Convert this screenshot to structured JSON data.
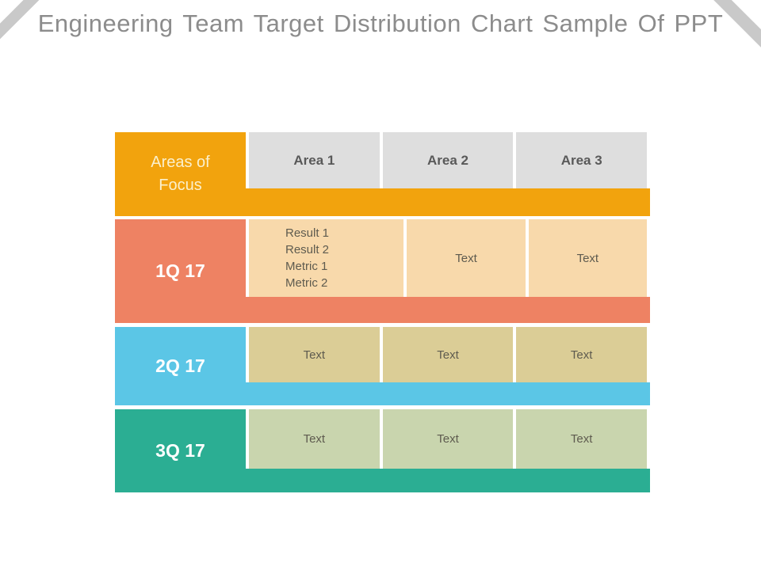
{
  "slide": {
    "title": "Engineering Team Target Distribution Chart Sample Of PPT"
  },
  "table": {
    "corner_header_lines": [
      "Areas of",
      "Focus"
    ],
    "column_headers": [
      "Area 1",
      "Area 2",
      "Area 3"
    ],
    "rows": [
      {
        "label": "1Q 17",
        "cells": [
          {
            "lines": [
              "Result 1",
              "Result 2",
              "Metric 1",
              "Metric 2"
            ]
          },
          {
            "lines": [
              "Text"
            ]
          },
          {
            "lines": [
              "Text"
            ]
          }
        ]
      },
      {
        "label": "2Q 17",
        "cells": [
          {
            "lines": [
              "Text"
            ]
          },
          {
            "lines": [
              "Text"
            ]
          },
          {
            "lines": [
              "Text"
            ]
          }
        ]
      },
      {
        "label": "3Q 17",
        "cells": [
          {
            "lines": [
              "Text"
            ]
          },
          {
            "lines": [
              "Text"
            ]
          },
          {
            "lines": [
              "Text"
            ]
          }
        ]
      }
    ]
  },
  "colors": {
    "header_orange": "#f2a30d",
    "header_cell_gray": "#dedede",
    "q1_salmon": "#ee8263",
    "q1_cell_peach": "#f8d9ab",
    "q2_blue": "#5bc6e6",
    "q2_cell_khaki": "#dbcd96",
    "q3_teal": "#2bae93",
    "q3_cell_green": "#c9d5ae",
    "title_gray": "#8c8c8c",
    "corner_stripe_gray": "#c9c9c9",
    "dark_text": "#595959",
    "cell_text": "#5e5b4f",
    "corner_label_cream": "#fbf0cc"
  },
  "chart_data": {
    "type": "table",
    "columns": [
      "Areas of Focus",
      "Area 1",
      "Area 2",
      "Area 3"
    ],
    "rows": [
      [
        "1Q 17",
        "Result 1 / Result 2 / Metric 1 / Metric 2",
        "Text",
        "Text"
      ],
      [
        "2Q 17",
        "Text",
        "Text",
        "Text"
      ],
      [
        "3Q 17",
        "Text",
        "Text",
        "Text"
      ]
    ],
    "title": "Engineering Team Target Distribution Chart Sample Of PPT"
  }
}
